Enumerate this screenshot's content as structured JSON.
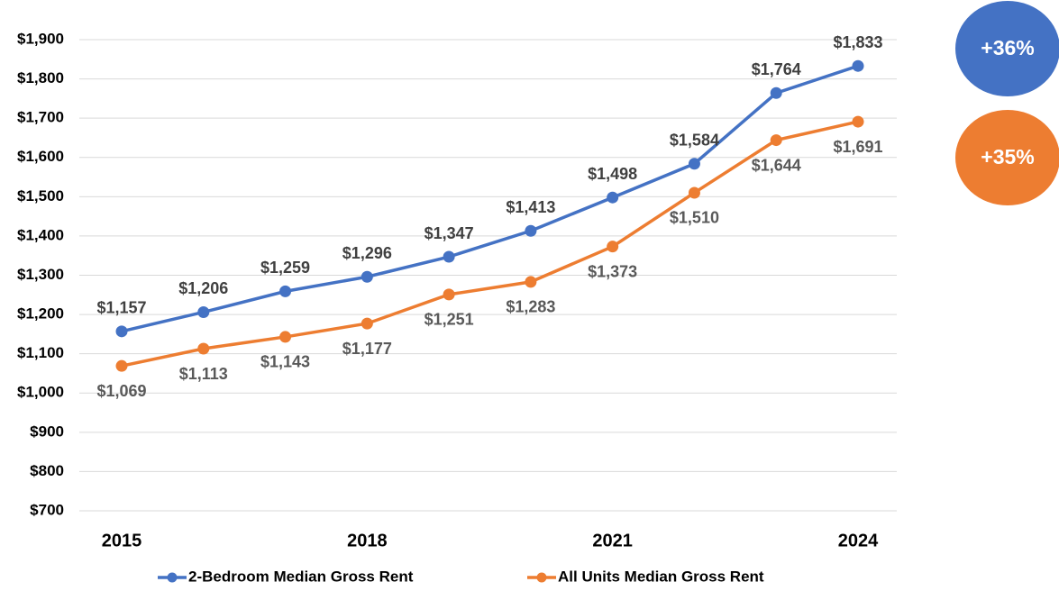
{
  "chart_data": {
    "type": "line",
    "categories": [
      "2015",
      null,
      null,
      "2018",
      null,
      null,
      "2021",
      null,
      null,
      "2024"
    ],
    "series": [
      {
        "name": "2-Bedroom Median Gross Rent",
        "color": "#4472c4",
        "values": [
          1157,
          1206,
          1259,
          1296,
          1347,
          1413,
          1498,
          1584,
          1764,
          1833
        ],
        "value_labels": [
          "$1,157",
          "$1,206",
          "$1,259",
          "$1,296",
          "$1,347",
          "$1,413",
          "$1,498",
          "$1,584",
          "$1,764",
          "$1,833"
        ]
      },
      {
        "name": "All Units Median Gross Rent",
        "color": "#ed7d31",
        "values": [
          1069,
          1113,
          1143,
          1177,
          1251,
          1283,
          1373,
          1510,
          1644,
          1691
        ],
        "value_labels": [
          "$1,069",
          "$1,113",
          "$1,143",
          "$1,177",
          "$1,251",
          "$1,283",
          "$1,373",
          "$1,510",
          "$1,644",
          "$1,691"
        ]
      }
    ],
    "ylim": [
      700,
      1900
    ],
    "yticks": [
      {
        "value": 700,
        "label": "$700"
      },
      {
        "value": 800,
        "label": "$800"
      },
      {
        "value": 900,
        "label": "$900"
      },
      {
        "value": 1000,
        "label": "$1,000"
      },
      {
        "value": 1100,
        "label": "$1,100"
      },
      {
        "value": 1200,
        "label": "$1,200"
      },
      {
        "value": 1300,
        "label": "$1,300"
      },
      {
        "value": 1400,
        "label": "$1,400"
      },
      {
        "value": 1500,
        "label": "$1,500"
      },
      {
        "value": 1600,
        "label": "$1,600"
      },
      {
        "value": 1700,
        "label": "$1,700"
      },
      {
        "value": 1800,
        "label": "$1,800"
      },
      {
        "value": 1900,
        "label": "$1,900"
      }
    ],
    "grid": true,
    "legend": "bottom",
    "annotations": [
      {
        "text": "+36%",
        "color": "#4472c4"
      },
      {
        "text": "+35%",
        "color": "#ed7d31"
      }
    ]
  }
}
